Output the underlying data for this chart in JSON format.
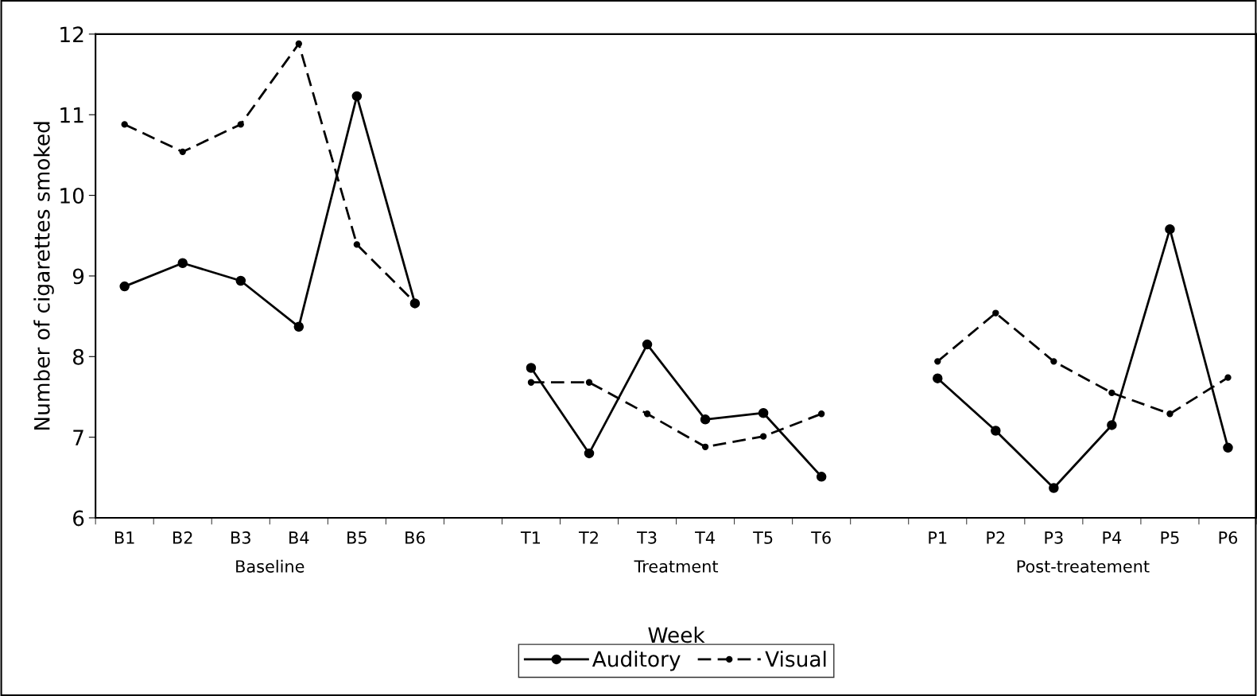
{
  "chart_data": {
    "type": "line",
    "categories": [
      "B1",
      "B2",
      "B3",
      "B4",
      "B5",
      "B6",
      null,
      "T1",
      "T2",
      "T3",
      "T4",
      "T5",
      "T6",
      null,
      "P1",
      "P2",
      "P3",
      "P4",
      "P5",
      "P6"
    ],
    "series": [
      {
        "name": "Auditory",
        "color": "#000000",
        "line_style": "solid",
        "values": [
          8.87,
          9.16,
          8.94,
          8.37,
          11.23,
          8.66,
          null,
          7.86,
          6.8,
          8.15,
          7.22,
          7.3,
          6.51,
          null,
          7.73,
          7.08,
          6.37,
          7.15,
          9.58,
          6.87
        ]
      },
      {
        "name": "Visual",
        "color": "#000000",
        "line_style": "dashed",
        "values": [
          10.88,
          10.54,
          10.88,
          11.88,
          9.39,
          8.67,
          null,
          7.68,
          7.68,
          7.29,
          6.88,
          7.01,
          7.29,
          null,
          7.94,
          8.54,
          7.94,
          7.55,
          7.29,
          7.74
        ]
      }
    ],
    "xlabel": "Week",
    "ylabel": "Number of cigarettes smoked",
    "annotations": [
      "Baseline",
      "Treatment",
      "Post-treatement"
    ],
    "ylim": [
      6,
      12
    ],
    "yticks": [
      6,
      7,
      8,
      9,
      10,
      11,
      12
    ],
    "marker": "circle",
    "grid": false,
    "legend": "bottom"
  }
}
